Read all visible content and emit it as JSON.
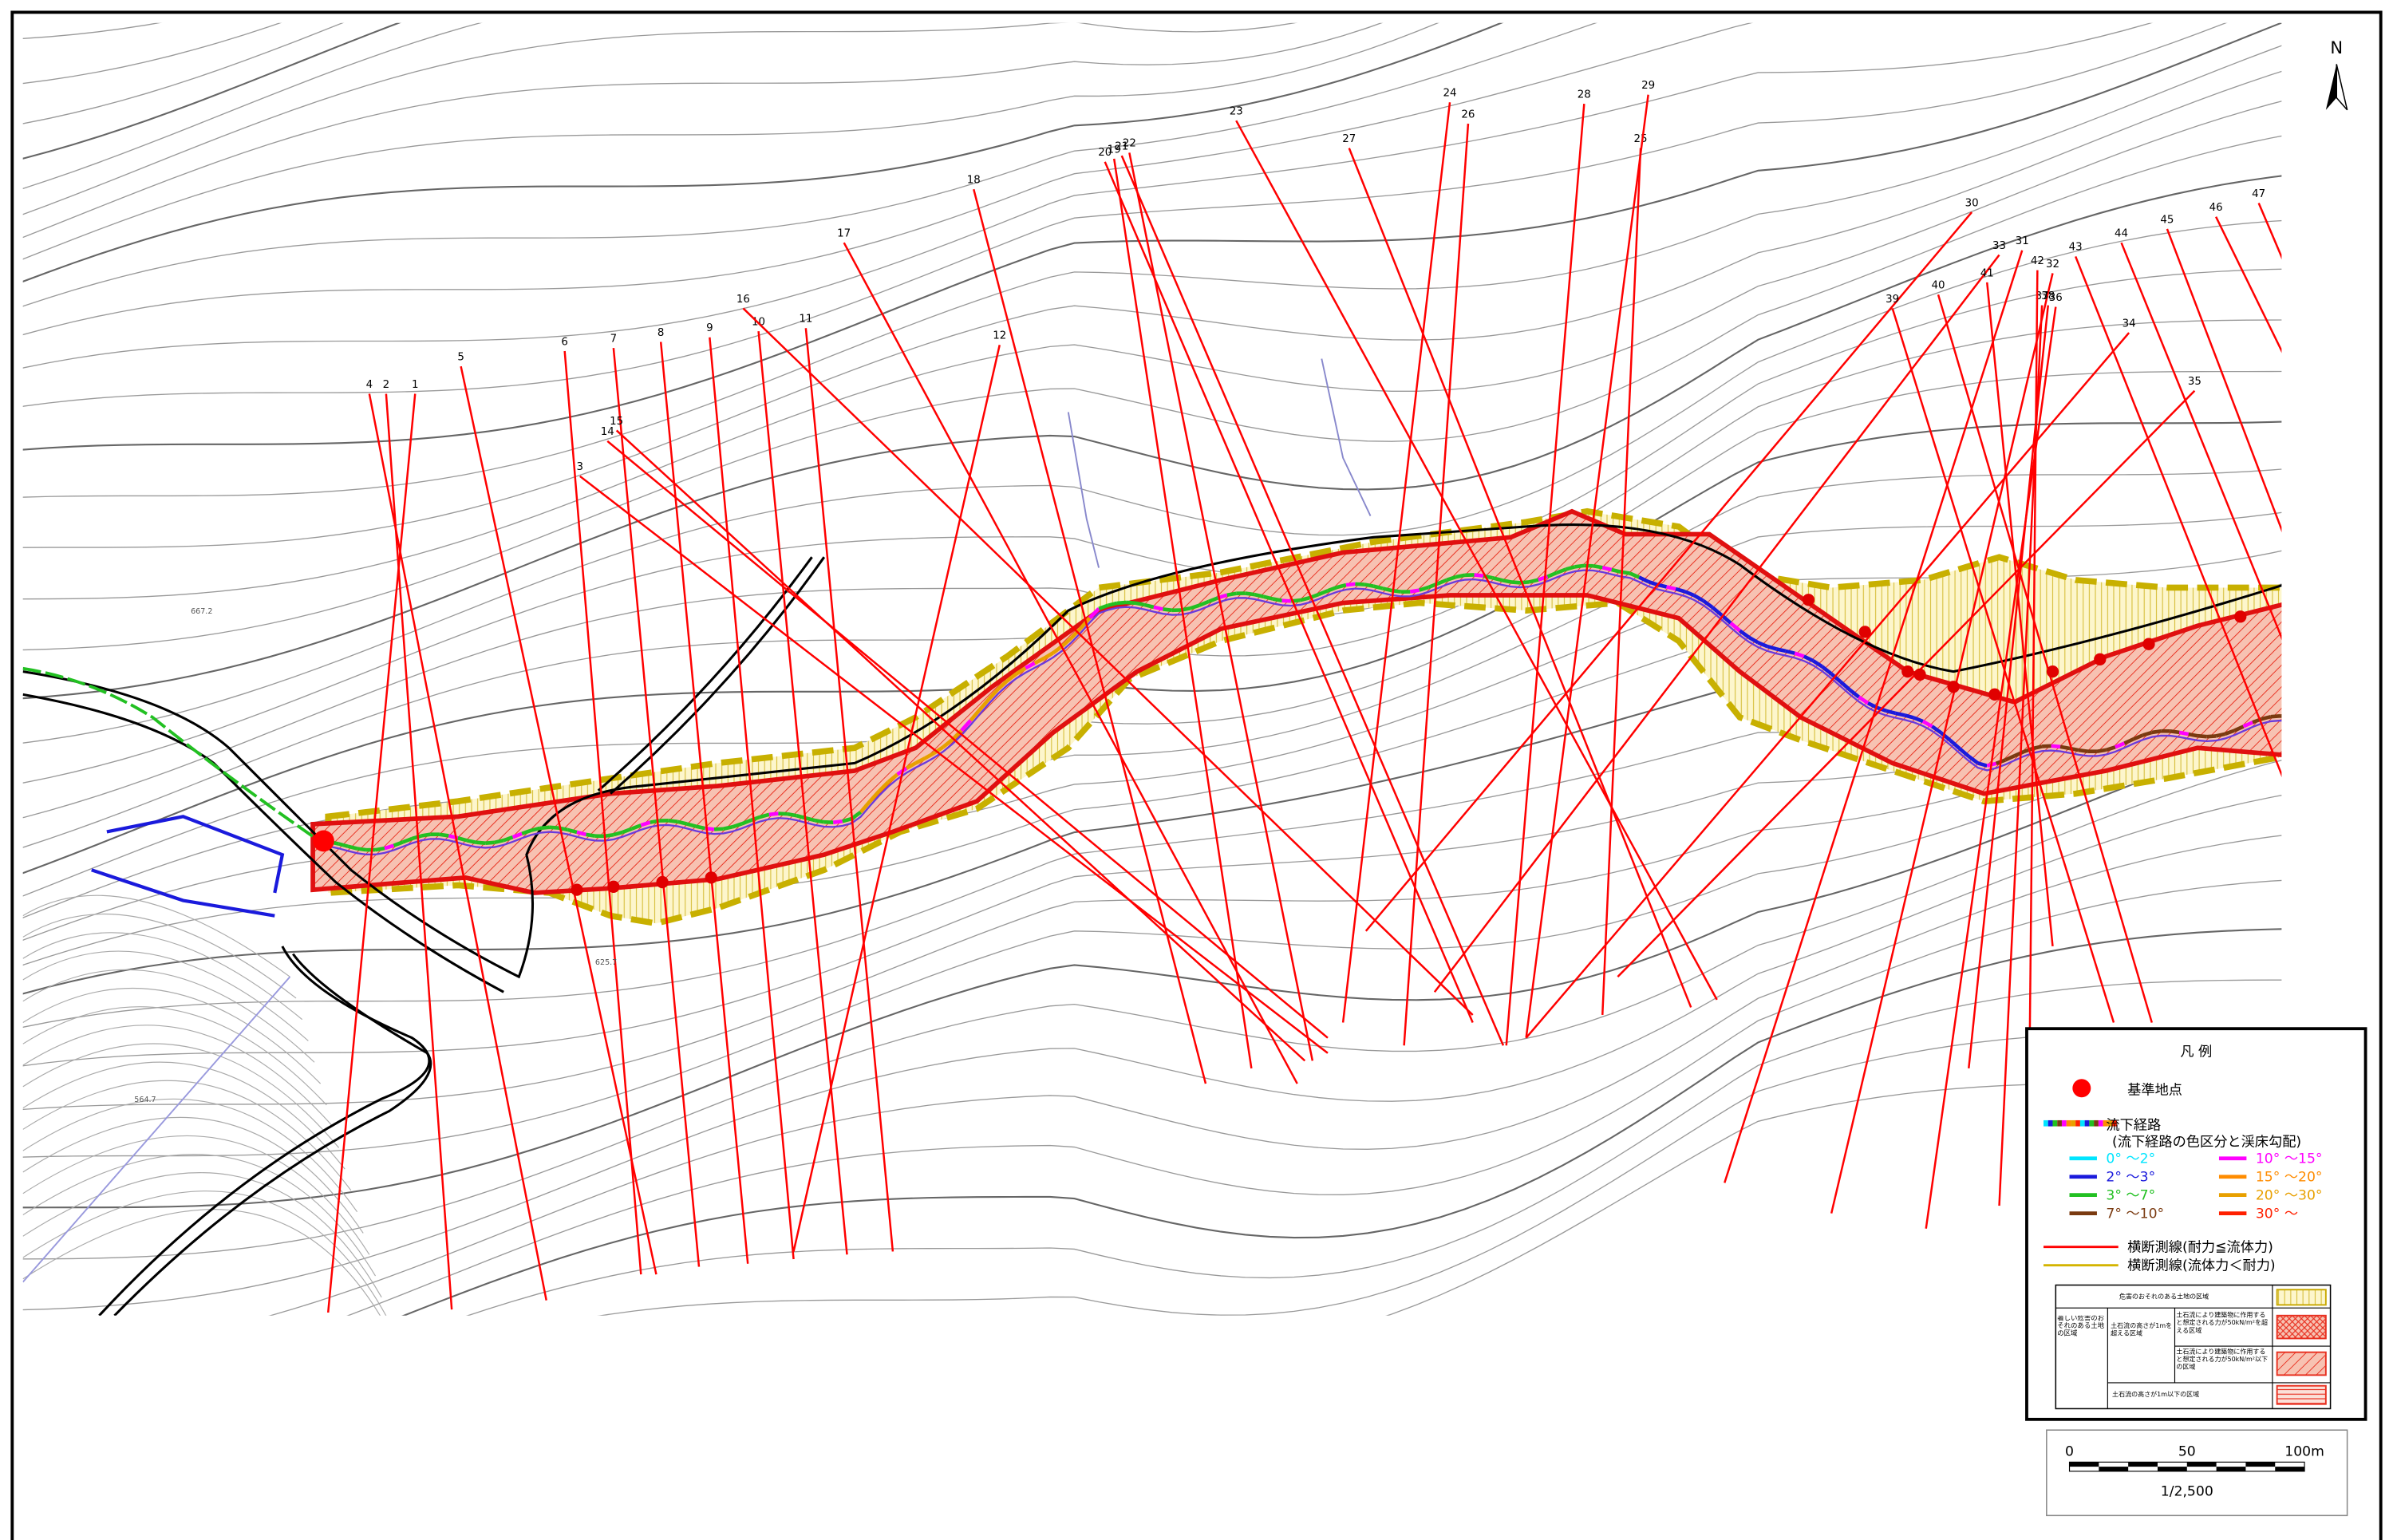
{
  "map": {
    "north": "N",
    "section_labels": [
      "4",
      "2",
      "1",
      "5",
      "6",
      "7",
      "8",
      "9",
      "10",
      "11",
      "12",
      "3",
      "14",
      "15",
      "16",
      "17",
      "18",
      "19",
      "20",
      "21",
      "22",
      "23",
      "24",
      "25",
      "26",
      "27",
      "28",
      "29",
      "30",
      "31",
      "32",
      "33",
      "34",
      "35",
      "36",
      "37",
      "38",
      "39",
      "40",
      "41",
      "42",
      "43",
      "44",
      "45",
      "46",
      "47"
    ],
    "elevations": [
      "667.2",
      "625.7",
      "564.7"
    ]
  },
  "legend": {
    "title": "凡 例",
    "reference_point": "基準地点",
    "flow_path": "流下経路",
    "flow_path_note": "(流下経路の色区分と渓床勾配)",
    "slopes": [
      {
        "label": "0° ～2°",
        "color": "#00e5ff"
      },
      {
        "label": "2° ～3°",
        "color": "#1a1adc"
      },
      {
        "label": "3° ～7°",
        "color": "#22c022"
      },
      {
        "label": "7° ～10°",
        "color": "#7a3a10"
      },
      {
        "label": "10° ～15°",
        "color": "#ff00ff"
      },
      {
        "label": "15° ～20°",
        "color": "#ff8c00"
      },
      {
        "label": "20° ～30°",
        "color": "#e8a000"
      },
      {
        "label": "30° ～",
        "color": "#ff2000"
      }
    ],
    "section_lines": [
      {
        "label": "横断測線(耐力≦流体力)",
        "color": "#ff0000"
      },
      {
        "label": "横断測線(流体力＜耐力)",
        "color": "#d4b400"
      }
    ],
    "zones": {
      "warning": "危害のおそれのある土地の区域",
      "special": "著しい危害のおそれのある土地の区域",
      "over_1m": "土石流の高さが1mを超える区域",
      "force_over": "土石流により建築物に作用すると想定される力が50kN/m²を超える区域",
      "force_under": "土石流により建築物に作用すると想定される力が50kN/m²以下の区域",
      "under_1m": "土石流の高さが1m以下の区域"
    }
  },
  "scale": {
    "ticks": [
      "0",
      "50",
      "100m"
    ],
    "ratio": "1/2,500"
  }
}
